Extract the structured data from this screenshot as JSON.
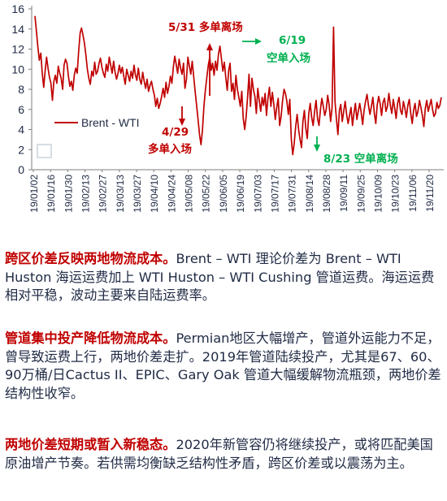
{
  "chart_data": {
    "type": "line",
    "title": "",
    "xlabel": "",
    "ylabel": "",
    "ylim": [
      0,
      16
    ],
    "yticks": [
      0,
      2,
      4,
      6,
      8,
      10,
      12,
      14,
      16
    ],
    "grid": false,
    "legend_position": "left-middle",
    "x_tick_labels": [
      "19/01/02",
      "19/01/16",
      "19/01/30",
      "19/02/13",
      "19/02/27",
      "19/03/13",
      "19/03/27",
      "19/04/10",
      "19/04/24",
      "19/05/08",
      "19/05/22",
      "19/06/05",
      "19/06/19",
      "19/07/03",
      "19/07/17",
      "19/07/31",
      "19/08/14",
      "19/08/28",
      "19/09/11",
      "19/09/25",
      "19/10/09",
      "19/10/23",
      "19/11/06",
      "19/11/20"
    ],
    "series": [
      {
        "name": "Brent - WTI",
        "color": "#c00000",
        "values": [
          15.3,
          13.8,
          12.2,
          10.9,
          11.6,
          9.6,
          8.2,
          9.8,
          11.2,
          10.1,
          9.2,
          8.6,
          6.9,
          8.8,
          9.4,
          8.6,
          10.3,
          9.6,
          9.1,
          8.0,
          10.4,
          11.0,
          10.6,
          9.3,
          8.3,
          8.8,
          7.9,
          9.4,
          10.1,
          9.6,
          11.8,
          13.6,
          14.1,
          13.4,
          12.6,
          11.4,
          10.0,
          9.1,
          8.5,
          9.8,
          9.3,
          10.7,
          9.5,
          9.8,
          10.6,
          11.1,
          10.2,
          9.6,
          9.2,
          10.5,
          9.8,
          11.2,
          10.4,
          9.6,
          10.8,
          9.7,
          9.0,
          9.6,
          10.4,
          9.6,
          10.2,
          9.3,
          8.5,
          10.0,
          9.4,
          8.8,
          9.8,
          9.1,
          10.4,
          9.4,
          8.9,
          10.1,
          9.0,
          8.5,
          9.7,
          8.8,
          8.1,
          9.0,
          7.8,
          8.4,
          8.8,
          8.0,
          7.4,
          6.3,
          7.1,
          6.1,
          6.6,
          7.3,
          8.1,
          7.2,
          8.7,
          7.6,
          8.3,
          9.3,
          8.6,
          10.2,
          11.3,
          10.5,
          9.6,
          11.0,
          10.1,
          9.5,
          10.6,
          8.1,
          9.0,
          11.2,
          10.3,
          9.5,
          10.8,
          9.3,
          7.8,
          6.4,
          5.0,
          3.5,
          2.5,
          3.9,
          6.3,
          7.9,
          9.2,
          10.4,
          11.2,
          9.9,
          10.6,
          9.4,
          10.8,
          9.9,
          11.5,
          12.3,
          11.1,
          9.8,
          10.7,
          9.2,
          7.9,
          9.9,
          10.6,
          7.8,
          8.6,
          7.0,
          9.4,
          8.0,
          7.2,
          6.3,
          7.8,
          5.1,
          4.0,
          5.3,
          7.2,
          9.5,
          6.3,
          9.1,
          8.0,
          7.3,
          5.6,
          8.1,
          6.9,
          5.8,
          7.2,
          6.4,
          7.6,
          5.4,
          7.1,
          8.2,
          6.3,
          7.7,
          6.5,
          5.0,
          6.2,
          7.1,
          4.4,
          5.3,
          6.9,
          8.0,
          7.6,
          6.8,
          5.5,
          7.0,
          3.1,
          1.5,
          2.6,
          4.3,
          5.5,
          4.0,
          3.0,
          2.2,
          4.8,
          5.9,
          4.1,
          3.1,
          5.6,
          6.6,
          5.2,
          4.4,
          5.8,
          6.9,
          5.1,
          4.4,
          6.0,
          7.1,
          6.3,
          5.4,
          6.0,
          7.4,
          6.4,
          4.8,
          6.2,
          14.2,
          6.8,
          5.0,
          3.5,
          5.9,
          6.5,
          4.8,
          5.8,
          6.8,
          5.5,
          4.6,
          5.4,
          6.2,
          4.4,
          5.6,
          6.6,
          5.0,
          5.8,
          6.6,
          5.7,
          4.5,
          5.9,
          6.8,
          7.5,
          6.4,
          5.5,
          6.3,
          7.2,
          5.6,
          4.6,
          6.4,
          7.3,
          6.6,
          5.4,
          6.7,
          7.1,
          5.8,
          6.3,
          7.6,
          6.4,
          5.6,
          7.0,
          6.1,
          5.1,
          6.6,
          7.2,
          5.9,
          5.5,
          6.8,
          6.1,
          5.2,
          6.4,
          7.0,
          5.6,
          4.6,
          5.9,
          6.6,
          5.3,
          5.8,
          6.9,
          6.2,
          5.4,
          4.3,
          6.1,
          6.9,
          5.8,
          6.4,
          7.0,
          6.0,
          5.3,
          5.6,
          6.7,
          6.1,
          6.4,
          7.2
        ]
      }
    ],
    "annotations": [
      {
        "text": "5/31 多单离场",
        "color": "#c00000",
        "arrow": "up"
      },
      {
        "text": "4/29",
        "color": "#c00000",
        "arrow": "down"
      },
      {
        "text": "多单入场",
        "color": "#c00000",
        "arrow": "none"
      },
      {
        "text": "6/19",
        "color": "#00b050",
        "arrow": "right"
      },
      {
        "text": "空单入场",
        "color": "#00b050",
        "arrow": "none"
      },
      {
        "text": "8/23 空单离场",
        "color": "#00b050",
        "arrow": "down"
      }
    ]
  },
  "paragraphs": [
    {
      "highlight": "跨区价差反映两地物流成本。",
      "text": "Brent – WTI  理论价差为 Brent – WTI Huston 海运运费加上 WTI Huston – WTI Cushing 管道运费。海运运费相对平稳，波动主要来自陆运费率。"
    },
    {
      "highlight": "管道集中投产降低物流成本。",
      "text": "Permian地区大幅增产，管道外运能力不足，曾导致运费上行，两地价差走扩。2019年管道陆续投产，尤其是67、60、90万桶/日Cactus II、EPIC、Gary Oak 管道大幅缓解物流瓶颈，两地价差结构性收窄。"
    },
    {
      "highlight": "两地价差短期或暂入新稳态。",
      "text": "2020年新管容仍将继续投产，或将匹配美国原油增产节奏。若供需均衡缺乏结构性矛盾，跨区价差或以震荡为主。"
    }
  ]
}
